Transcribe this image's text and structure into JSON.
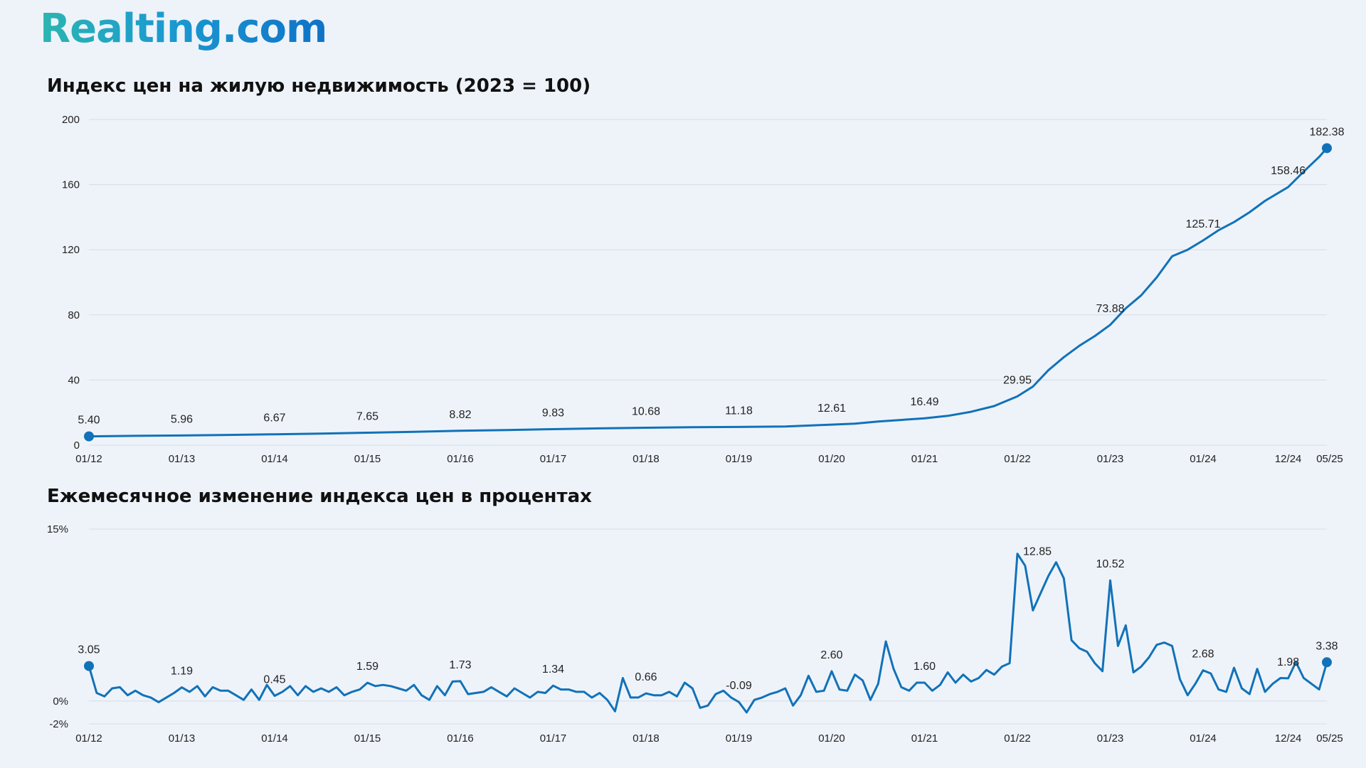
{
  "brand": {
    "logo_text": "Realting.com",
    "accent": "#1172b8"
  },
  "chart_data": [
    {
      "type": "line",
      "title": "Индекс цен на жилую недвижимость (2023 = 100)",
      "xlabel": "",
      "ylabel": "",
      "ylim": [
        0,
        200
      ],
      "y_ticks": [
        "0",
        "40",
        "80",
        "120",
        "160",
        "200"
      ],
      "x_tick_labels": [
        "01/12",
        "01/13",
        "01/14",
        "01/15",
        "01/16",
        "01/17",
        "01/18",
        "01/19",
        "01/20",
        "01/21",
        "01/22",
        "01/23",
        "01/24",
        "12/24",
        "05/25"
      ],
      "grid": true,
      "series": [
        {
          "color": "#1172b8",
          "points": [
            [
              "2012-01",
              5.4
            ],
            [
              "2012-07",
              5.7
            ],
            [
              "2013-01",
              5.96
            ],
            [
              "2013-07",
              6.3
            ],
            [
              "2014-01",
              6.67
            ],
            [
              "2014-07",
              7.1
            ],
            [
              "2015-01",
              7.65
            ],
            [
              "2015-07",
              8.2
            ],
            [
              "2016-01",
              8.82
            ],
            [
              "2016-07",
              9.3
            ],
            [
              "2017-01",
              9.83
            ],
            [
              "2017-07",
              10.3
            ],
            [
              "2018-01",
              10.68
            ],
            [
              "2018-07",
              11.0
            ],
            [
              "2019-01",
              11.18
            ],
            [
              "2019-07",
              11.5
            ],
            [
              "2020-01",
              12.61
            ],
            [
              "2020-04",
              13.2
            ],
            [
              "2020-07",
              14.5
            ],
            [
              "2021-01",
              16.49
            ],
            [
              "2021-04",
              18.0
            ],
            [
              "2021-07",
              20.5
            ],
            [
              "2021-10",
              24.0
            ],
            [
              "2022-01",
              29.95
            ],
            [
              "2022-03",
              36.0
            ],
            [
              "2022-05",
              46.0
            ],
            [
              "2022-07",
              54.0
            ],
            [
              "2022-09",
              61.0
            ],
            [
              "2022-11",
              67.0
            ],
            [
              "2023-01",
              73.88
            ],
            [
              "2023-03",
              84.0
            ],
            [
              "2023-05",
              92.0
            ],
            [
              "2023-07",
              103.0
            ],
            [
              "2023-09",
              116.0
            ],
            [
              "2023-11",
              120.0
            ],
            [
              "2024-01",
              125.71
            ],
            [
              "2024-03",
              132.0
            ],
            [
              "2024-05",
              137.0
            ],
            [
              "2024-07",
              143.0
            ],
            [
              "2024-09",
              150.0
            ],
            [
              "2024-12",
              158.46
            ],
            [
              "2025-02",
              168.0
            ],
            [
              "2025-04",
              177.0
            ],
            [
              "2025-05",
              182.38
            ]
          ]
        }
      ],
      "data_labels": [
        {
          "x": "2012-01",
          "label": "5.40"
        },
        {
          "x": "2013-01",
          "label": "5.96"
        },
        {
          "x": "2014-01",
          "label": "6.67"
        },
        {
          "x": "2015-01",
          "label": "7.65"
        },
        {
          "x": "2016-01",
          "label": "8.82"
        },
        {
          "x": "2017-01",
          "label": "9.83"
        },
        {
          "x": "2018-01",
          "label": "10.68"
        },
        {
          "x": "2019-01",
          "label": "11.18"
        },
        {
          "x": "2020-01",
          "label": "12.61"
        },
        {
          "x": "2021-01",
          "label": "16.49"
        },
        {
          "x": "2022-01",
          "label": "29.95"
        },
        {
          "x": "2023-01",
          "label": "73.88"
        },
        {
          "x": "2024-01",
          "label": "125.71"
        },
        {
          "x": "2024-12",
          "label": "158.46"
        },
        {
          "x": "2025-05",
          "label": "182.38"
        }
      ]
    },
    {
      "type": "line",
      "title": "Ежемесячное изменение индекса цен в процентах",
      "xlabel": "",
      "ylabel": "",
      "ylim": [
        -2,
        15
      ],
      "y_ticks": [
        "-2%",
        "0%",
        "15%"
      ],
      "x_tick_labels": [
        "01/12",
        "01/13",
        "01/14",
        "01/15",
        "01/16",
        "01/17",
        "01/18",
        "01/19",
        "01/20",
        "01/21",
        "01/22",
        "01/23",
        "01/24",
        "12/24",
        "05/25"
      ],
      "grid": true,
      "series": [
        {
          "color": "#1172b8",
          "points": [
            [
              "2012-01",
              3.05
            ],
            [
              "2012-02",
              0.7
            ],
            [
              "2012-03",
              0.4
            ],
            [
              "2012-04",
              1.1
            ],
            [
              "2012-05",
              1.2
            ],
            [
              "2012-06",
              0.5
            ],
            [
              "2012-07",
              0.9
            ],
            [
              "2012-08",
              0.5
            ],
            [
              "2012-09",
              0.3
            ],
            [
              "2012-10",
              -0.1
            ],
            [
              "2012-11",
              0.3
            ],
            [
              "2012-12",
              0.7
            ],
            [
              "2013-01",
              1.19
            ],
            [
              "2013-02",
              0.8
            ],
            [
              "2013-03",
              1.3
            ],
            [
              "2013-04",
              0.4
            ],
            [
              "2013-05",
              1.2
            ],
            [
              "2013-06",
              0.9
            ],
            [
              "2013-07",
              0.9
            ],
            [
              "2013-08",
              0.5
            ],
            [
              "2013-09",
              0.1
            ],
            [
              "2013-10",
              1.0
            ],
            [
              "2013-11",
              0.1
            ],
            [
              "2013-12",
              1.4
            ],
            [
              "2014-01",
              0.45
            ],
            [
              "2014-02",
              0.8
            ],
            [
              "2014-03",
              1.3
            ],
            [
              "2014-04",
              0.5
            ],
            [
              "2014-05",
              1.3
            ],
            [
              "2014-06",
              0.8
            ],
            [
              "2014-07",
              1.1
            ],
            [
              "2014-08",
              0.8
            ],
            [
              "2014-09",
              1.2
            ],
            [
              "2014-10",
              0.5
            ],
            [
              "2014-11",
              0.8
            ],
            [
              "2014-12",
              1.0
            ],
            [
              "2015-01",
              1.59
            ],
            [
              "2015-02",
              1.3
            ],
            [
              "2015-03",
              1.4
            ],
            [
              "2015-04",
              1.3
            ],
            [
              "2015-05",
              1.1
            ],
            [
              "2015-06",
              0.9
            ],
            [
              "2015-07",
              1.4
            ],
            [
              "2015-08",
              0.5
            ],
            [
              "2015-09",
              0.1
            ],
            [
              "2015-10",
              1.3
            ],
            [
              "2015-11",
              0.5
            ],
            [
              "2015-12",
              1.7
            ],
            [
              "2016-01",
              1.73
            ],
            [
              "2016-02",
              0.6
            ],
            [
              "2016-03",
              0.7
            ],
            [
              "2016-04",
              0.8
            ],
            [
              "2016-05",
              1.2
            ],
            [
              "2016-06",
              0.8
            ],
            [
              "2016-07",
              0.4
            ],
            [
              "2016-08",
              1.1
            ],
            [
              "2016-09",
              0.7
            ],
            [
              "2016-10",
              0.3
            ],
            [
              "2016-11",
              0.8
            ],
            [
              "2016-12",
              0.7
            ],
            [
              "2017-01",
              1.34
            ],
            [
              "2017-02",
              1.0
            ],
            [
              "2017-03",
              1.0
            ],
            [
              "2017-04",
              0.8
            ],
            [
              "2017-05",
              0.8
            ],
            [
              "2017-06",
              0.3
            ],
            [
              "2017-07",
              0.7
            ],
            [
              "2017-08",
              0.1
            ],
            [
              "2017-09",
              -0.9
            ],
            [
              "2017-10",
              2.0
            ],
            [
              "2017-11",
              0.3
            ],
            [
              "2017-12",
              0.3
            ],
            [
              "2018-01",
              0.66
            ],
            [
              "2018-02",
              0.5
            ],
            [
              "2018-03",
              0.5
            ],
            [
              "2018-04",
              0.8
            ],
            [
              "2018-05",
              0.4
            ],
            [
              "2018-06",
              1.6
            ],
            [
              "2018-07",
              1.1
            ],
            [
              "2018-08",
              -0.6
            ],
            [
              "2018-09",
              -0.4
            ],
            [
              "2018-10",
              0.6
            ],
            [
              "2018-11",
              0.9
            ],
            [
              "2018-12",
              0.3
            ],
            [
              "2019-01",
              -0.09
            ],
            [
              "2019-02",
              -1.0
            ],
            [
              "2019-03",
              0.1
            ],
            [
              "2019-04",
              0.3
            ],
            [
              "2019-05",
              0.6
            ],
            [
              "2019-06",
              0.8
            ],
            [
              "2019-07",
              1.1
            ],
            [
              "2019-08",
              -0.4
            ],
            [
              "2019-09",
              0.5
            ],
            [
              "2019-10",
              2.2
            ],
            [
              "2019-11",
              0.8
            ],
            [
              "2019-12",
              0.9
            ],
            [
              "2020-01",
              2.6
            ],
            [
              "2020-02",
              1.0
            ],
            [
              "2020-03",
              0.9
            ],
            [
              "2020-04",
              2.3
            ],
            [
              "2020-05",
              1.8
            ],
            [
              "2020-06",
              0.1
            ],
            [
              "2020-07",
              1.5
            ],
            [
              "2020-08",
              5.2
            ],
            [
              "2020-09",
              2.8
            ],
            [
              "2020-10",
              1.2
            ],
            [
              "2020-11",
              0.9
            ],
            [
              "2020-12",
              1.6
            ],
            [
              "2021-01",
              1.6
            ],
            [
              "2021-02",
              0.9
            ],
            [
              "2021-03",
              1.4
            ],
            [
              "2021-04",
              2.5
            ],
            [
              "2021-05",
              1.6
            ],
            [
              "2021-06",
              2.3
            ],
            [
              "2021-07",
              1.7
            ],
            [
              "2021-08",
              2.0
            ],
            [
              "2021-09",
              2.7
            ],
            [
              "2021-10",
              2.3
            ],
            [
              "2021-11",
              3.0
            ],
            [
              "2021-12",
              3.3
            ],
            [
              "2022-01",
              12.85
            ],
            [
              "2022-02",
              11.8
            ],
            [
              "2022-03",
              7.9
            ],
            [
              "2022-04",
              9.4
            ],
            [
              "2022-05",
              10.9
            ],
            [
              "2022-06",
              12.1
            ],
            [
              "2022-07",
              10.7
            ],
            [
              "2022-08",
              5.3
            ],
            [
              "2022-09",
              4.6
            ],
            [
              "2022-10",
              4.3
            ],
            [
              "2022-11",
              3.3
            ],
            [
              "2022-12",
              2.6
            ],
            [
              "2023-01",
              10.52
            ],
            [
              "2023-02",
              4.8
            ],
            [
              "2023-03",
              6.6
            ],
            [
              "2023-04",
              2.5
            ],
            [
              "2023-05",
              3.0
            ],
            [
              "2023-06",
              3.8
            ],
            [
              "2023-07",
              4.9
            ],
            [
              "2023-08",
              5.1
            ],
            [
              "2023-09",
              4.8
            ],
            [
              "2023-10",
              1.9
            ],
            [
              "2023-11",
              0.5
            ],
            [
              "2023-12",
              1.5
            ],
            [
              "2024-01",
              2.68
            ],
            [
              "2024-02",
              2.4
            ],
            [
              "2024-03",
              1.0
            ],
            [
              "2024-04",
              0.8
            ],
            [
              "2024-05",
              2.9
            ],
            [
              "2024-06",
              1.1
            ],
            [
              "2024-07",
              0.6
            ],
            [
              "2024-08",
              2.8
            ],
            [
              "2024-09",
              0.8
            ],
            [
              "2024-10",
              1.5
            ],
            [
              "2024-11",
              2.0
            ],
            [
              "2024-12",
              1.98
            ],
            [
              "2025-01",
              3.4
            ],
            [
              "2025-02",
              2.0
            ],
            [
              "2025-03",
              1.5
            ],
            [
              "2025-04",
              1.0
            ],
            [
              "2025-05",
              3.38
            ]
          ]
        }
      ],
      "data_labels": [
        {
          "x": "2012-01",
          "label": "3.05"
        },
        {
          "x": "2013-01",
          "label": "1.19"
        },
        {
          "x": "2014-01",
          "label": "0.45"
        },
        {
          "x": "2015-01",
          "label": "1.59"
        },
        {
          "x": "2016-01",
          "label": "1.73"
        },
        {
          "x": "2017-01",
          "label": "1.34"
        },
        {
          "x": "2018-01",
          "label": "0.66"
        },
        {
          "x": "2019-01",
          "label": "-0.09"
        },
        {
          "x": "2020-01",
          "label": "2.60"
        },
        {
          "x": "2021-01",
          "label": "1.60"
        },
        {
          "x": "2022-01",
          "label": "12.85"
        },
        {
          "x": "2023-01",
          "label": "10.52"
        },
        {
          "x": "2024-01",
          "label": "2.68"
        },
        {
          "x": "2024-12",
          "label": "1.98"
        },
        {
          "x": "2025-05",
          "label": "3.38"
        }
      ]
    }
  ]
}
